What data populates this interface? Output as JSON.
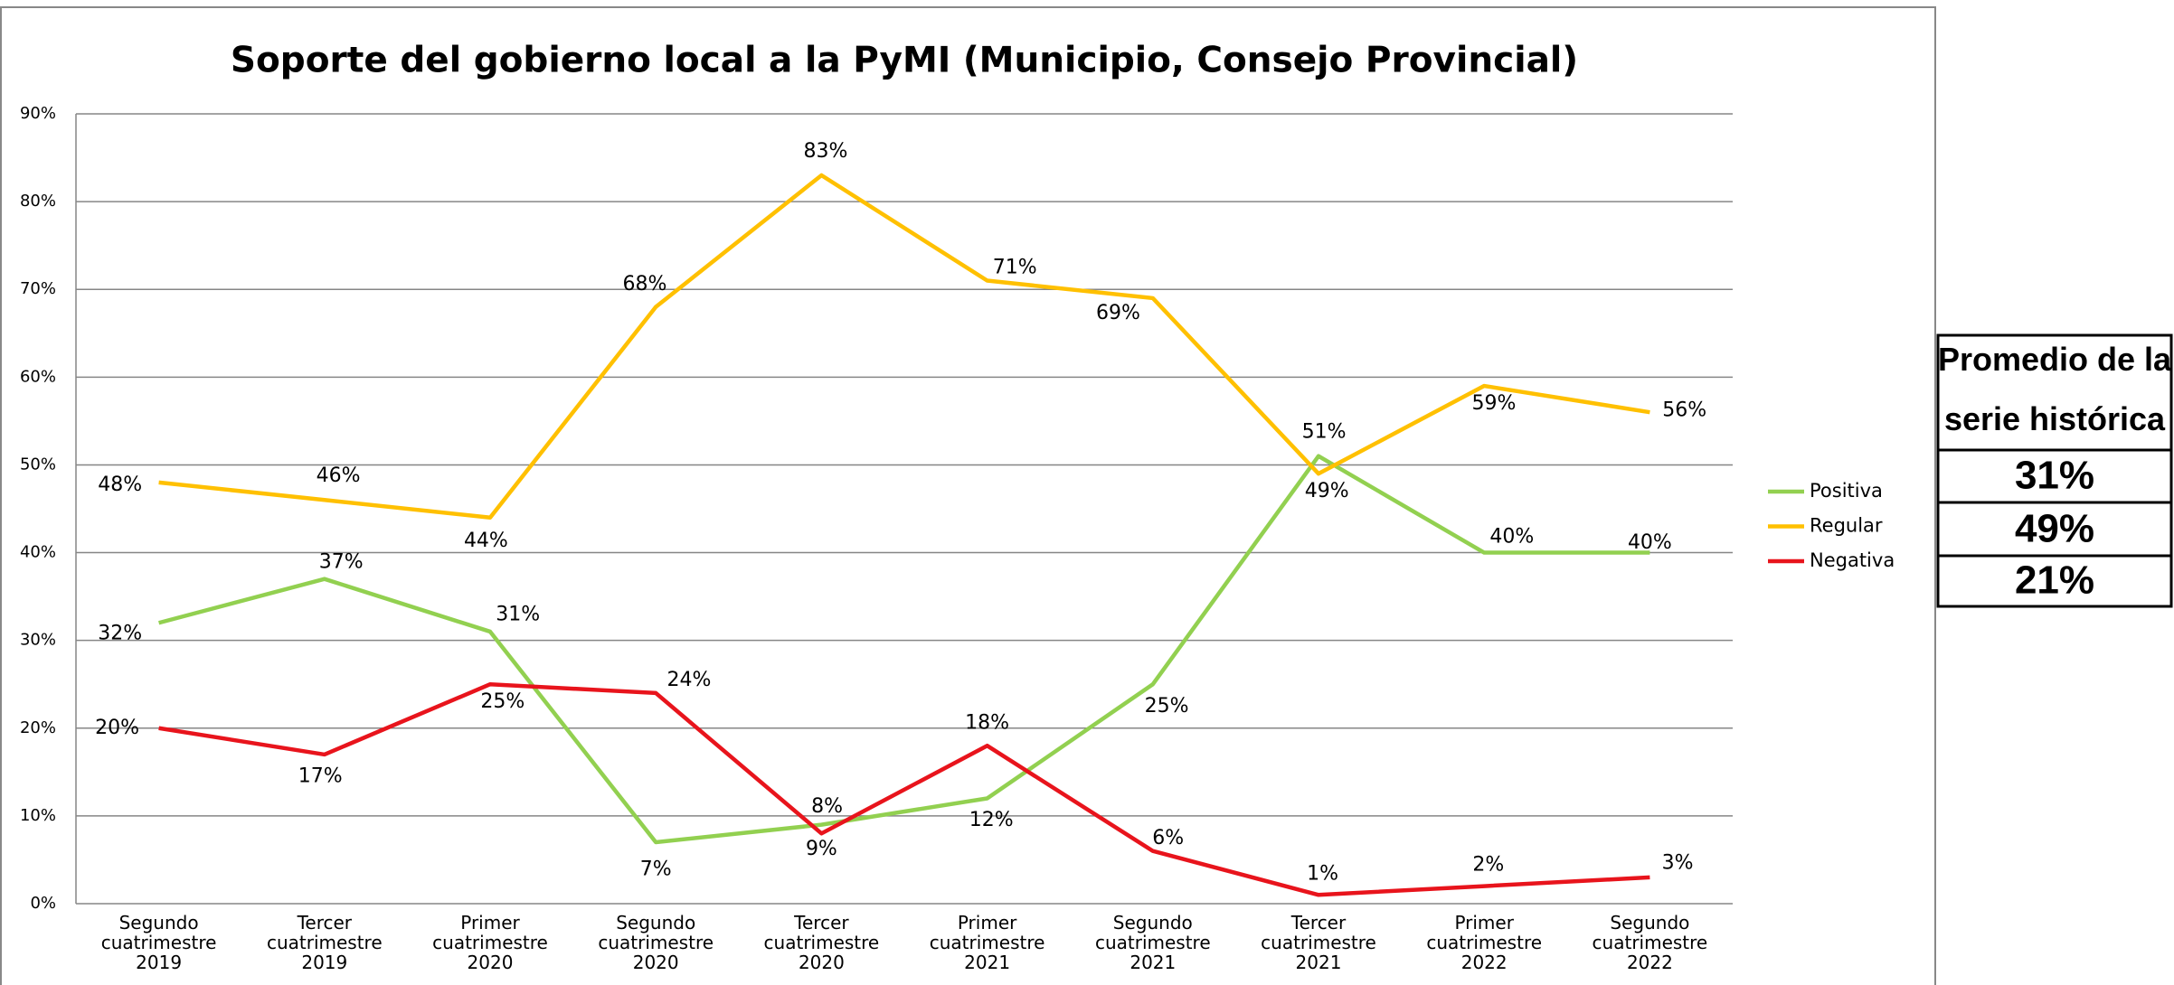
{
  "chart_data": {
    "type": "line",
    "title": "Soporte del gobierno local a la PyMI (Municipio, Consejo Provincial)",
    "categories": [
      "Segundo cuatrimestre 2019",
      "Tercer cuatrimestre 2019",
      "Primer cuatrimestre 2020",
      "Segundo cuatrimestre 2020",
      "Tercer cuatrimestre 2020",
      "Primer cuatrimestre 2021",
      "Segundo cuatrimestre 2021",
      "Tercer cuatrimestre 2021",
      "Primer cuatrimestre 2022",
      "Segundo cuatrimestre 2022"
    ],
    "series": [
      {
        "name": "Positiva",
        "color": "#92d050",
        "values": [
          32,
          37,
          31,
          7,
          9,
          12,
          25,
          51,
          40,
          40
        ],
        "value_labels": [
          "32%",
          "37%",
          "31%",
          "7%",
          "9%",
          "12%",
          "25%",
          "51%",
          "40%",
          "40%"
        ]
      },
      {
        "name": "Regular",
        "color": "#ffc000",
        "values": [
          48,
          46,
          44,
          68,
          83,
          71,
          69,
          49,
          59,
          56
        ],
        "value_labels": [
          "48%",
          "46%",
          "44%",
          "68%",
          "83%",
          "71%",
          "69%",
          "49%",
          "59%",
          "56%"
        ]
      },
      {
        "name": "Negativa",
        "color": "#e8141c",
        "values": [
          20,
          17,
          25,
          24,
          8,
          18,
          6,
          1,
          2,
          3
        ],
        "value_labels": [
          "20%",
          "17%",
          "25%",
          "24%",
          "8%",
          "18%",
          "6%",
          "1%",
          "2%",
          "3%"
        ]
      }
    ],
    "ylim": [
      0,
      90
    ],
    "yticks": [
      {
        "value": 0,
        "label": "0%"
      },
      {
        "value": 10,
        "label": "10%"
      },
      {
        "value": 20,
        "label": "20%"
      },
      {
        "value": 30,
        "label": "30%"
      },
      {
        "value": 40,
        "label": "40%"
      },
      {
        "value": 50,
        "label": "50%"
      },
      {
        "value": 60,
        "label": "60%"
      },
      {
        "value": 70,
        "label": "70%"
      },
      {
        "value": 80,
        "label": "80%"
      },
      {
        "value": 90,
        "label": "90%"
      }
    ],
    "grid": true,
    "legend": "right"
  },
  "side_table": {
    "title": "Promedio de la serie histórica",
    "rows": [
      "31%",
      "49%",
      "21%"
    ]
  }
}
